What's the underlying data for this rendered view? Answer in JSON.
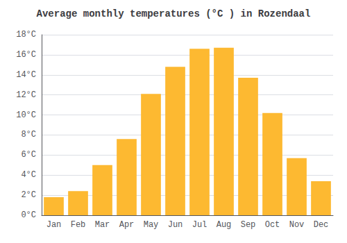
{
  "chart_data": {
    "type": "bar",
    "title": "Average monthly temperatures (°C ) in Rozendaal",
    "categories": [
      "Jan",
      "Feb",
      "Mar",
      "Apr",
      "May",
      "Jun",
      "Jul",
      "Aug",
      "Sep",
      "Oct",
      "Nov",
      "Dec"
    ],
    "values": [
      1.8,
      2.4,
      5.0,
      7.6,
      12.1,
      14.8,
      16.6,
      16.7,
      13.7,
      10.2,
      5.7,
      3.4
    ],
    "color": "#FDB931",
    "ylim": [
      0,
      18
    ],
    "yticks": [
      {
        "value": 0,
        "label": "0°C"
      },
      {
        "value": 2,
        "label": "2°C"
      },
      {
        "value": 4,
        "label": "4°C"
      },
      {
        "value": 6,
        "label": "6°C"
      },
      {
        "value": 8,
        "label": "8°C"
      },
      {
        "value": 10,
        "label": "10°C"
      },
      {
        "value": 12,
        "label": "12°C"
      },
      {
        "value": 14,
        "label": "14°C"
      },
      {
        "value": 16,
        "label": "16°C"
      },
      {
        "value": 18,
        "label": "18°C"
      }
    ],
    "grid": true
  }
}
